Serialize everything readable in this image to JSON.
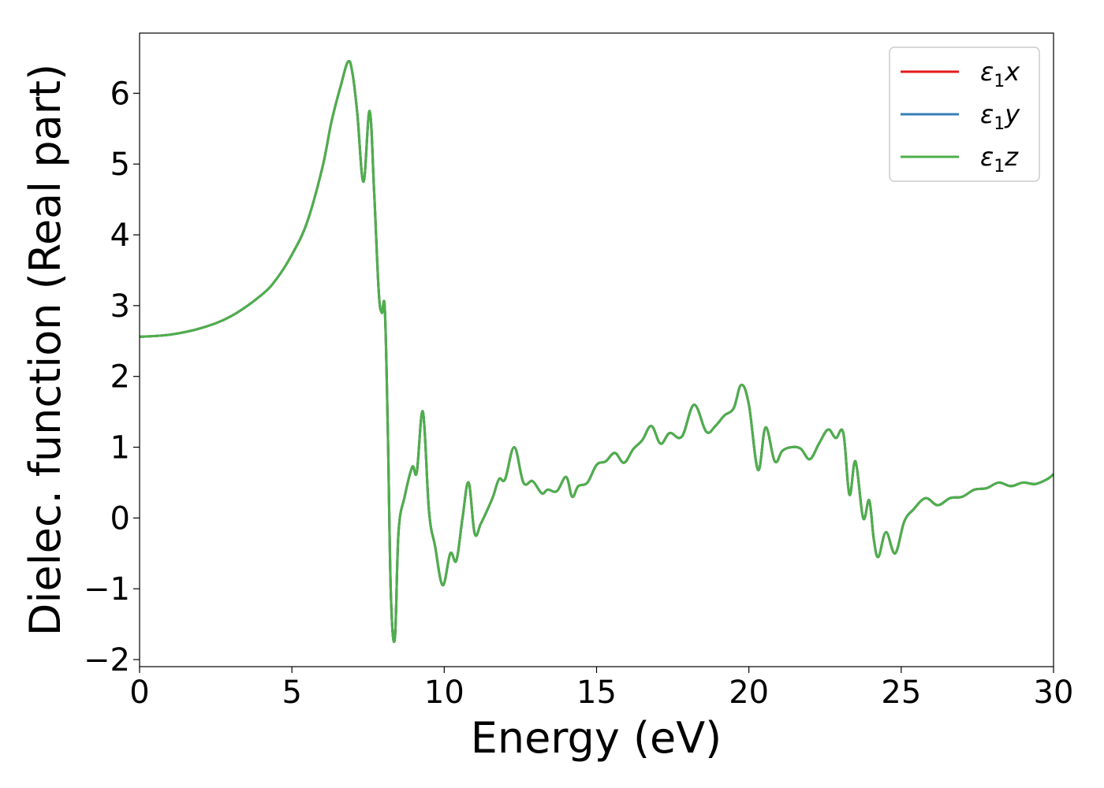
{
  "chart_data": {
    "type": "line",
    "xlabel": "Energy (eV)",
    "ylabel": "Dielec. function (Real part)",
    "xlim": [
      0,
      30
    ],
    "ylim": [
      -2.1,
      6.85
    ],
    "xticks": [
      0,
      5,
      10,
      15,
      20,
      25,
      30
    ],
    "yticks": [
      -2,
      -1,
      0,
      1,
      2,
      3,
      4,
      5,
      6
    ],
    "ytick_labels": [
      "−2",
      "−1",
      "0",
      "1",
      "2",
      "3",
      "4",
      "5",
      "6"
    ],
    "grid": false,
    "legend_position": "top-right",
    "series": [
      {
        "name": "x",
        "label_base": "ε",
        "label_sub": "1",
        "color": "#e41a1c"
      },
      {
        "name": "y",
        "label_base": "ε",
        "label_sub": "1",
        "color": "#377eb8"
      },
      {
        "name": "z",
        "label_base": "ε",
        "label_sub": "1",
        "color": "#4daf4a"
      }
    ],
    "x": [
      0,
      1,
      2,
      3,
      4,
      4.5,
      5,
      5.5,
      6,
      6.3,
      6.6,
      6.85,
      7.0,
      7.15,
      7.35,
      7.55,
      7.7,
      7.85,
      7.95,
      8.05,
      8.15,
      8.25,
      8.38,
      8.5,
      8.7,
      8.95,
      9.1,
      9.3,
      9.5,
      9.7,
      9.95,
      10.2,
      10.4,
      10.6,
      10.8,
      11.0,
      11.2,
      11.4,
      11.6,
      11.8,
      12.0,
      12.3,
      12.6,
      12.9,
      13.2,
      13.4,
      13.7,
      14.0,
      14.2,
      14.4,
      14.7,
      15.0,
      15.3,
      15.6,
      15.9,
      16.2,
      16.5,
      16.8,
      17.1,
      17.4,
      17.8,
      18.2,
      18.6,
      18.9,
      19.2,
      19.5,
      19.75,
      20.0,
      20.3,
      20.55,
      20.85,
      21.1,
      21.4,
      21.7,
      22.0,
      22.3,
      22.6,
      22.85,
      23.1,
      23.3,
      23.5,
      23.75,
      23.95,
      24.1,
      24.25,
      24.5,
      24.8,
      25.1,
      25.4,
      25.8,
      26.2,
      26.6,
      27.0,
      27.4,
      27.8,
      28.2,
      28.6,
      29.0,
      29.4,
      29.8,
      30.0
    ],
    "y_common": [
      2.56,
      2.59,
      2.68,
      2.85,
      3.15,
      3.38,
      3.72,
      4.18,
      4.95,
      5.6,
      6.1,
      6.45,
      6.25,
      5.7,
      4.75,
      5.75,
      4.6,
      3.2,
      2.9,
      2.95,
      1.2,
      -1.1,
      -1.7,
      -0.2,
      0.3,
      0.72,
      0.65,
      1.5,
      0.1,
      -0.4,
      -0.95,
      -0.5,
      -0.6,
      0.0,
      0.5,
      -0.22,
      -0.08,
      0.1,
      0.3,
      0.55,
      0.55,
      1.0,
      0.5,
      0.52,
      0.35,
      0.4,
      0.38,
      0.58,
      0.3,
      0.45,
      0.5,
      0.75,
      0.8,
      0.92,
      0.78,
      0.97,
      1.1,
      1.3,
      1.05,
      1.2,
      1.15,
      1.6,
      1.22,
      1.3,
      1.45,
      1.55,
      1.88,
      1.6,
      0.68,
      1.28,
      0.8,
      0.95,
      1.0,
      0.98,
      0.83,
      1.05,
      1.25,
      1.13,
      1.2,
      0.33,
      0.8,
      0.0,
      0.25,
      -0.3,
      -0.55,
      -0.2,
      -0.5,
      -0.05,
      0.12,
      0.28,
      0.18,
      0.28,
      0.3,
      0.4,
      0.42,
      0.5,
      0.45,
      0.5,
      0.48,
      0.55,
      0.62
    ]
  }
}
